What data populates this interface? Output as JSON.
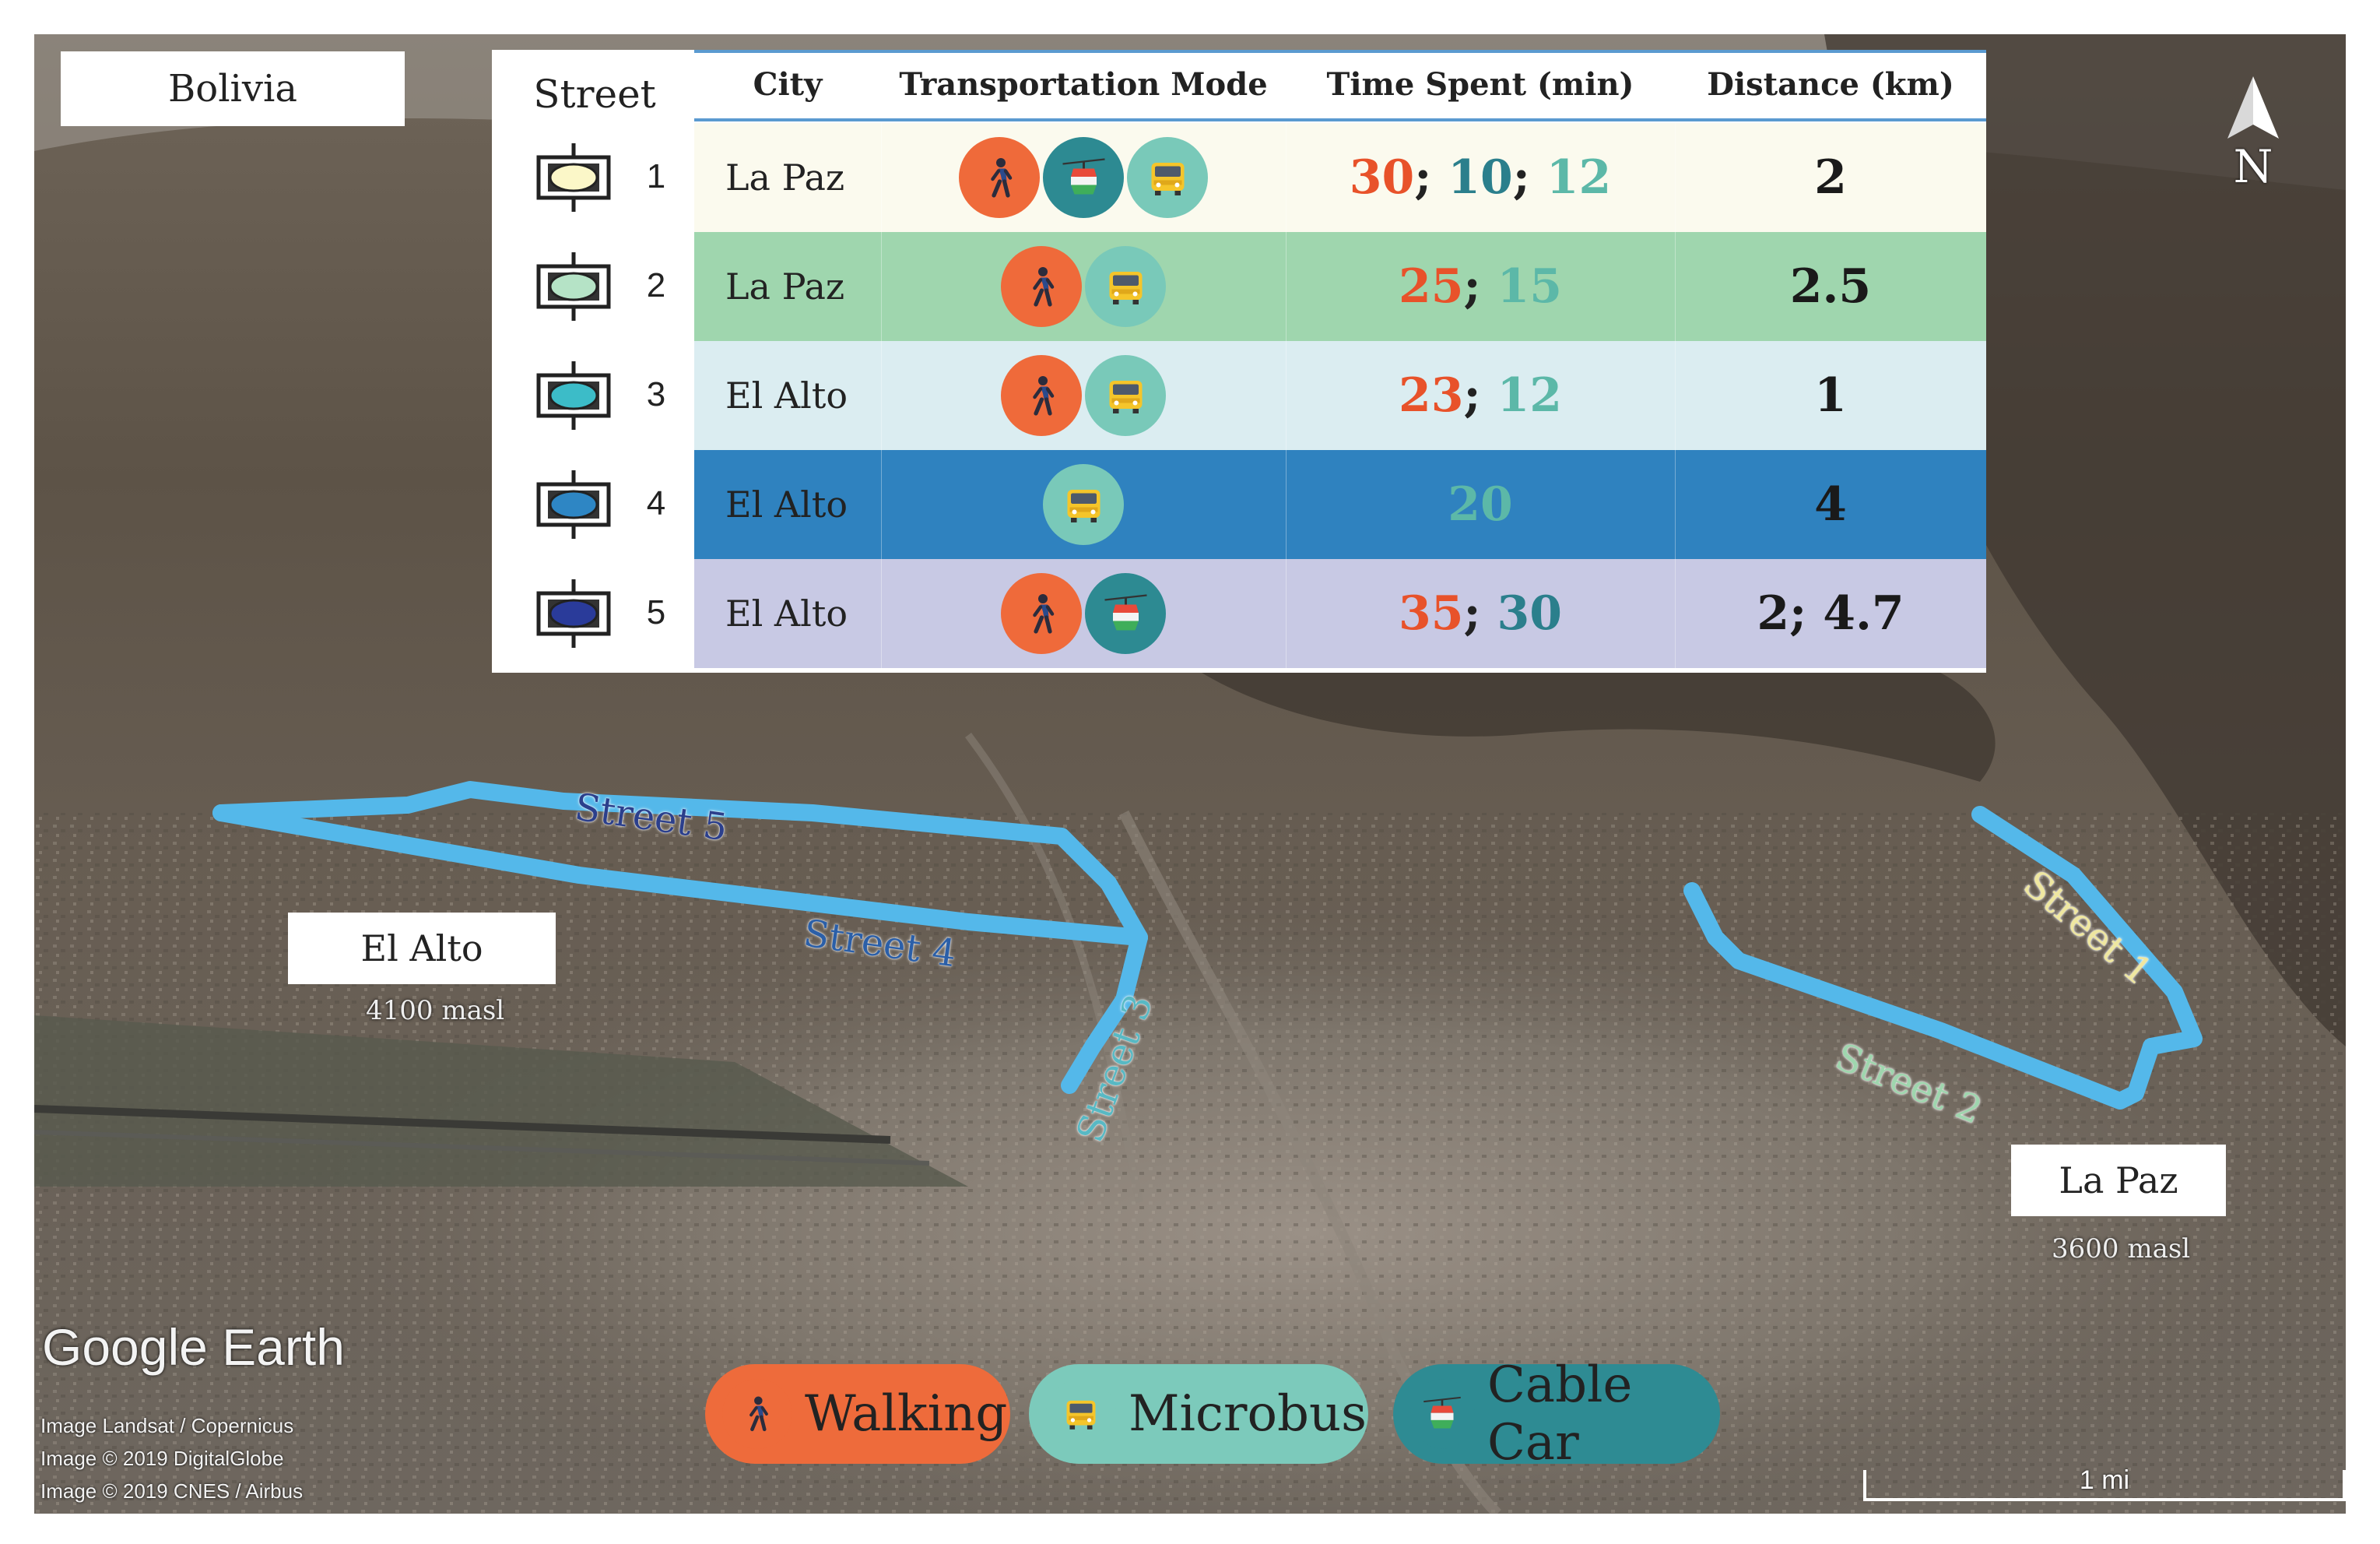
{
  "country_label": "Bolivia",
  "north_label": "N",
  "table": {
    "street_header": "Street",
    "headers": [
      "City",
      "Transportation Mode",
      "Time Spent (min)",
      "Distance (km)"
    ],
    "rows": [
      {
        "num": "1",
        "city": "La Paz",
        "modes": [
          "walking",
          "cablecar",
          "microbus"
        ],
        "times": [
          "30",
          "10",
          "12"
        ],
        "distance": "2",
        "row_color": "#fbfaee",
        "symbol_color": "#fbf7c8"
      },
      {
        "num": "2",
        "city": "La Paz",
        "modes": [
          "walking",
          "microbus"
        ],
        "times": [
          "25",
          "15"
        ],
        "distance": "2.5",
        "row_color": "#9fd6ae",
        "symbol_color": "#b5e3c6"
      },
      {
        "num": "3",
        "city": "El Alto",
        "modes": [
          "walking",
          "microbus"
        ],
        "times": [
          "23",
          "12"
        ],
        "distance": "1",
        "row_color": "#dbedf1",
        "symbol_color": "#3cbcc8"
      },
      {
        "num": "4",
        "city": "El Alto",
        "modes": [
          "microbus"
        ],
        "times": [
          "20"
        ],
        "distance": "4",
        "row_color": "#2f82bf",
        "symbol_color": "#2e86c4"
      },
      {
        "num": "5",
        "city": "El Alto",
        "modes": [
          "walking",
          "cablecar"
        ],
        "times": [
          "35",
          "30"
        ],
        "distance": "2; 4.7",
        "row_color": "#c8c9e4",
        "symbol_color": "#2a3b9a"
      }
    ]
  },
  "mode_colors": {
    "walking": "#ef6a3a",
    "microbus": "#79c9b9",
    "cablecar": "#2d8a92"
  },
  "time_colors": {
    "walking": "#e8522a",
    "microbus": "#5cb8a8",
    "cablecar": "#2b7f8c"
  },
  "places": [
    {
      "name": "El Alto",
      "elevation": "4100 masl"
    },
    {
      "name": "La Paz",
      "elevation": "3600 masl"
    }
  ],
  "street_labels": [
    "Street 5",
    "Street 4",
    "Street 3",
    "Street 1",
    "Street 2"
  ],
  "street_label_colors": [
    "#2b3f8c",
    "#2b5fa8",
    "#58b9c4",
    "#efe7a0",
    "#9fd6ae"
  ],
  "route_color": "#54b8ea",
  "legend": [
    {
      "mode": "walking",
      "label": "Walking",
      "color": "#ee6b3b"
    },
    {
      "mode": "microbus",
      "label": "Microbus",
      "color": "#7ccabb"
    },
    {
      "mode": "cablecar",
      "label": "Cable Car",
      "color": "#2e8b93"
    }
  ],
  "google_earth_logo": "Google Earth",
  "attribution": [
    "Image Landsat / Copernicus",
    "Image © 2019 DigitalGlobe",
    "Image © 2019 CNES / Airbus"
  ],
  "scale_label": "1 mi"
}
